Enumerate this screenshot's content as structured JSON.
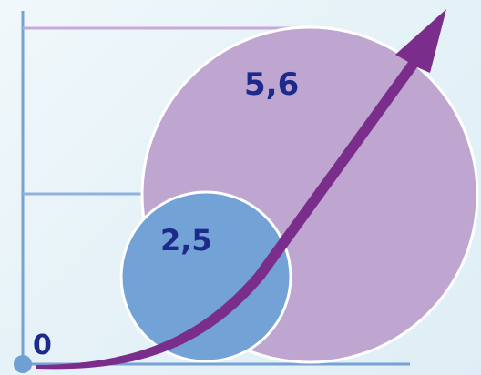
{
  "diagram": {
    "labels": {
      "zero": "0",
      "small": "2,5",
      "large": "5,6"
    },
    "colors": {
      "axis": "#76a2d4",
      "large_circle": "#bfa6d0",
      "small_circle": "#72a2d6",
      "arrow": "#7b2d8c",
      "label": "#1d2a8c",
      "origin_dot": "#6f9fd3"
    },
    "icons": {
      "growth_arrow": "curved-arrow-icon"
    }
  }
}
